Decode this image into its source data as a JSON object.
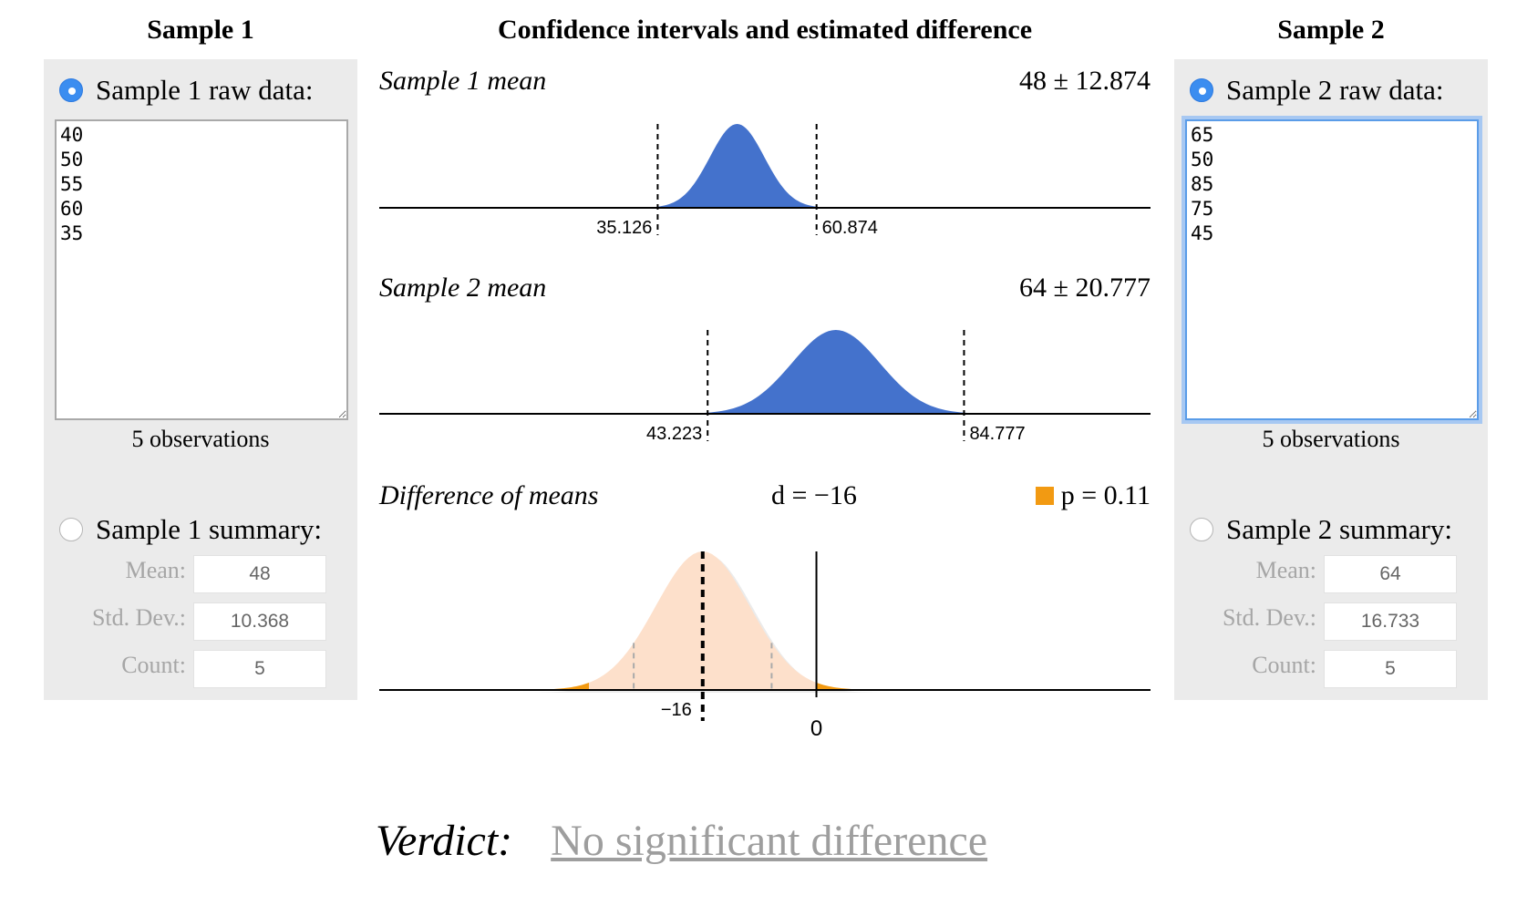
{
  "sample1": {
    "title": "Sample 1",
    "raw_label": "Sample 1 raw data:",
    "raw_values": "40\n50\n55\n60\n35",
    "observations": "5 observations",
    "summary_label": "Sample 1 summary:",
    "mean_label": "Mean:",
    "sd_label": "Std. Dev.:",
    "count_label": "Count:",
    "mean_value": "48",
    "sd_value": "10.368",
    "count_value": "5",
    "raw_selected": true
  },
  "sample2": {
    "title": "Sample 2",
    "raw_label": "Sample 2 raw data:",
    "raw_values": "65\n50\n85\n75\n45",
    "observations": "5 observations",
    "summary_label": "Sample 2 summary:",
    "mean_label": "Mean:",
    "sd_label": "Std. Dev.:",
    "count_label": "Count:",
    "mean_value": "64",
    "sd_value": "16.733",
    "count_value": "5",
    "raw_selected": true
  },
  "center": {
    "title": "Confidence intervals and estimated difference"
  },
  "colors": {
    "ci_fill": "#4472cc",
    "diff_fill": "#fde0cb",
    "tail_fill": "#f29a12",
    "radio_selected": "#3b8df0",
    "panel_bg": "#ebebeb"
  },
  "chart_data": [
    {
      "type": "area",
      "title": "Sample 1 mean",
      "value_text": "48 ± 12.874",
      "mean": 48,
      "margin": 12.874,
      "ci_lower": 35.126,
      "ci_upper": 60.874,
      "lower_label": "35.126",
      "upper_label": "60.874"
    },
    {
      "type": "area",
      "title": "Sample 2 mean",
      "value_text": "64 ± 20.777",
      "mean": 64,
      "margin": 20.777,
      "ci_lower": 43.223,
      "ci_upper": 84.777,
      "lower_label": "43.223",
      "upper_label": "84.777"
    },
    {
      "type": "area",
      "title": "Difference of means",
      "d_text": "d = −16",
      "p_text": "p = 0.11",
      "difference": -16,
      "zero_value": 0,
      "diff_label": "−16",
      "zero_label": "0",
      "p_value": 0.11
    }
  ],
  "verdict": {
    "label": "Verdict:",
    "value": "No significant difference"
  }
}
